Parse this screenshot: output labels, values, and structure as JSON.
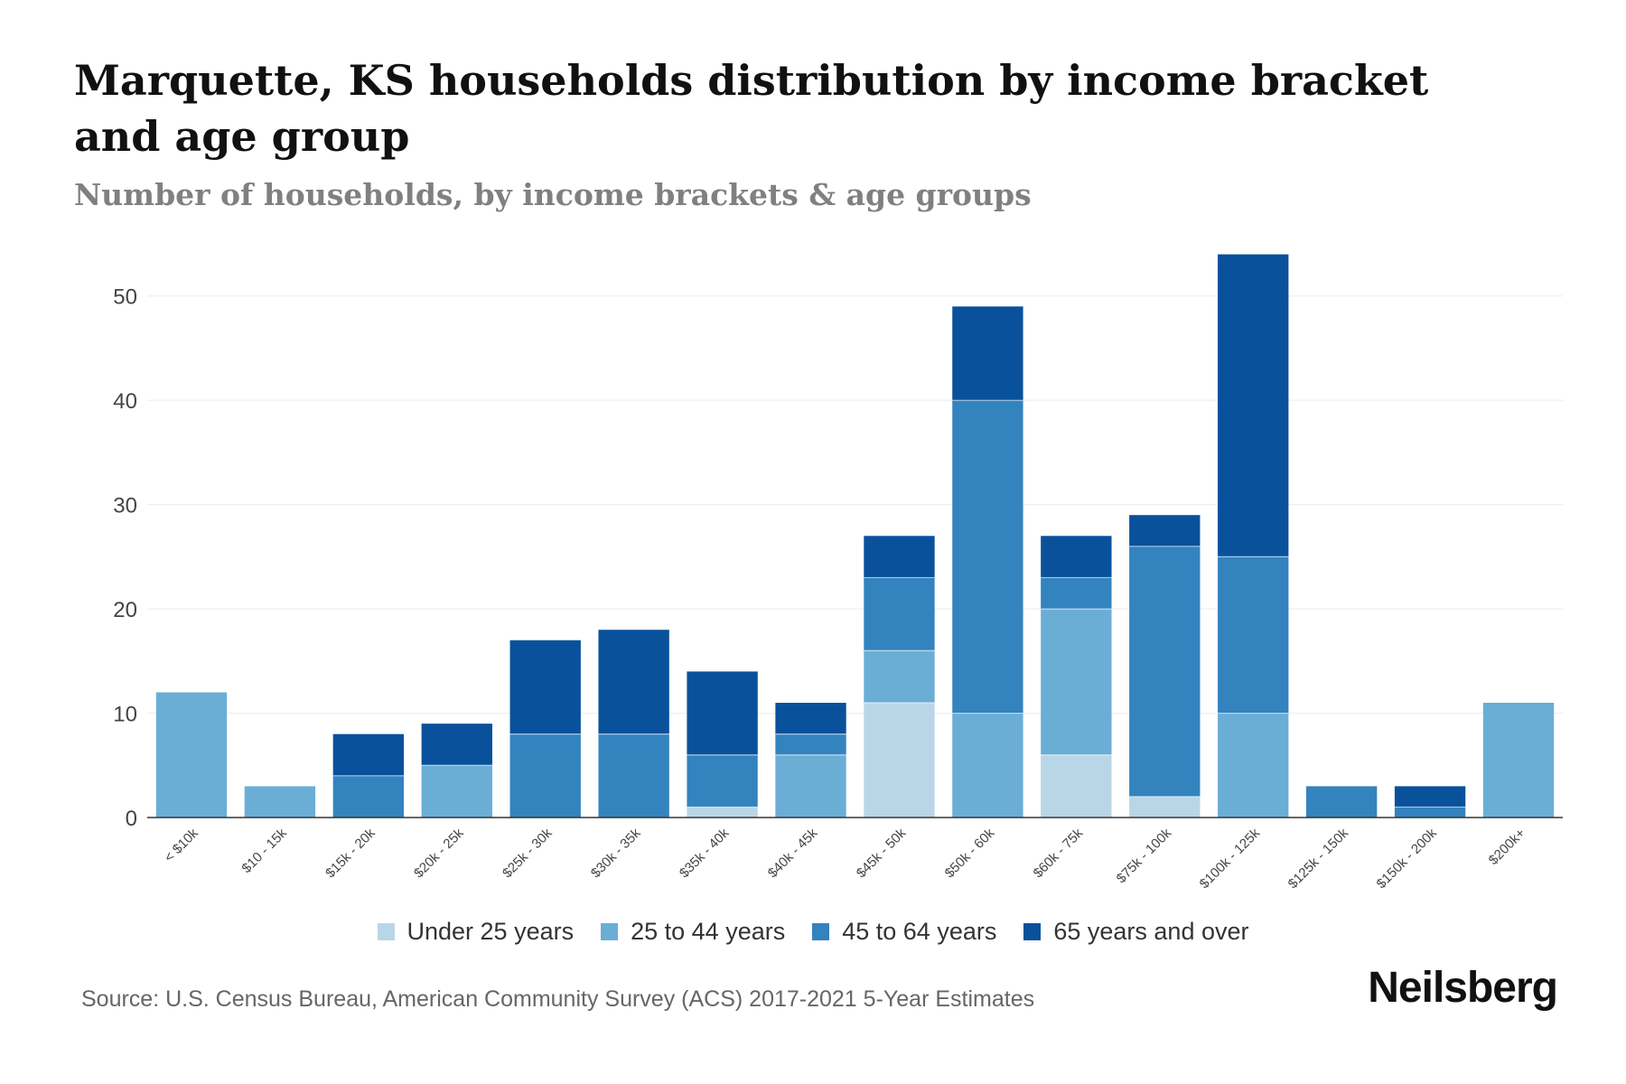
{
  "chart_data": {
    "type": "bar",
    "stacked": true,
    "title": "Marquette, KS households distribution by income bracket and age group",
    "subtitle": "Number of households, by income brackets & age groups",
    "xlabel": "",
    "ylabel": "",
    "ylim": [
      0,
      55
    ],
    "yticks": [
      0,
      10,
      20,
      30,
      40,
      50
    ],
    "grid": true,
    "legend_position": "bottom",
    "categories": [
      "< $10k",
      "$10 - 15k",
      "$15k - 20k",
      "$20k - 25k",
      "$25k - 30k",
      "$30k - 35k",
      "$35k - 40k",
      "$40k - 45k",
      "$45k - 50k",
      "$50k - 60k",
      "$60k - 75k",
      "$75k - 100k",
      "$100k - 125k",
      "$125k - 150k",
      "$150k - 200k",
      "$200k+"
    ],
    "series": [
      {
        "name": "Under 25 years",
        "color": "#b9d6e7",
        "values": [
          0,
          0,
          0,
          0,
          0,
          0,
          1,
          0,
          11,
          0,
          6,
          2,
          0,
          0,
          0,
          0
        ]
      },
      {
        "name": "25 to 44 years",
        "color": "#6aaed6",
        "values": [
          12,
          3,
          0,
          5,
          0,
          0,
          0,
          6,
          5,
          10,
          14,
          0,
          10,
          0,
          0,
          11
        ]
      },
      {
        "name": "45 to 64 years",
        "color": "#3383bf",
        "values": [
          0,
          0,
          4,
          0,
          8,
          8,
          5,
          2,
          7,
          30,
          3,
          24,
          15,
          3,
          1,
          0
        ]
      },
      {
        "name": "65 years and over",
        "color": "#0a519c",
        "values": [
          0,
          0,
          4,
          4,
          9,
          10,
          8,
          3,
          4,
          9,
          4,
          3,
          29,
          0,
          2,
          0
        ]
      }
    ]
  },
  "footer": {
    "source": "Source: U.S. Census Bureau, American Community Survey (ACS) 2017-2021 5-Year Estimates",
    "brand": "Neilsberg"
  }
}
